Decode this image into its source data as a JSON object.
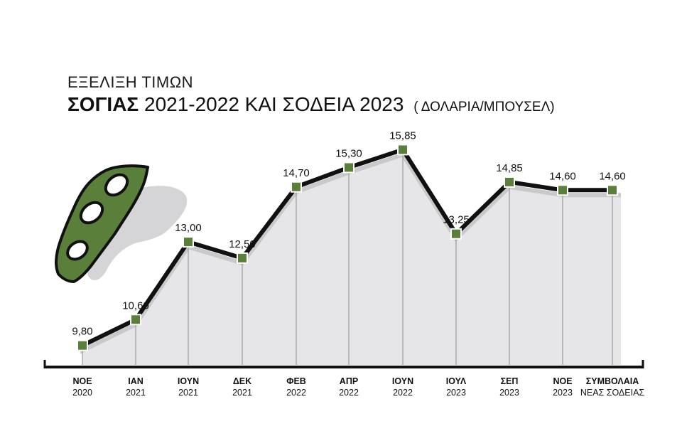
{
  "header": {
    "subtitle": "ΕΞΕΛΙΞΗ ΤΙΜΩΝ",
    "title_bold": "ΣΟΓΙΑΣ",
    "title_rest": "2021-2022 ΚΑΙ ΣΟΔΕΙΑ 2023",
    "title_unit": "( ΔΟΛΑΡΙΑ/ΜΠΟΥΣΕΛ)"
  },
  "colors": {
    "line": "#111111",
    "marker": "#5a7f3b",
    "area": "#e6e6e8",
    "pod": "#5a7f3b",
    "pod_shadow": "#d5d5d7"
  },
  "icon": "soybean-pod-icon",
  "chart_data": {
    "type": "line",
    "title": "ΕΞΕΛΙΞΗ ΤΙΜΩΝ ΣΟΓΙΑΣ 2021-2022 ΚΑΙ ΣΟΔΕΙΑ 2023 ( ΔΟΛΑΡΙΑ/ΜΠΟΥΣΕΛ)",
    "xlabel": "",
    "ylabel": "",
    "ylim": [
      8.5,
      16.5
    ],
    "grid": false,
    "categories": [
      {
        "top": "ΝΟΕ",
        "bottom": "2020"
      },
      {
        "top": "ΙΑΝ",
        "bottom": "2021"
      },
      {
        "top": "ΙΟΥΝ",
        "bottom": "2021"
      },
      {
        "top": "ΔΕΚ",
        "bottom": "2021"
      },
      {
        "top": "ΦΕΒ",
        "bottom": "2022"
      },
      {
        "top": "ΑΠΡ",
        "bottom": "2022"
      },
      {
        "top": "ΙΟΥΝ",
        "bottom": "2022"
      },
      {
        "top": "ΙΟΥΛ",
        "bottom": "2023"
      },
      {
        "top": "ΣΕΠ",
        "bottom": "2023"
      },
      {
        "top": "ΝΟΕ",
        "bottom": "2023"
      },
      {
        "top": "ΣΥΜΒΟΛΑΙΑ",
        "bottom": "ΝΕΑΣ ΣΟΔΕΙΑΣ"
      }
    ],
    "values": [
      9.8,
      10.6,
      13.0,
      12.5,
      14.7,
      15.3,
      15.85,
      13.25,
      14.85,
      14.6,
      14.6
    ],
    "value_labels": [
      "9,80",
      "10,60",
      "13,00",
      "12,50",
      "14,70",
      "15,30",
      "15,85",
      "13,25",
      "14,85",
      "14,60",
      "14,60"
    ]
  }
}
